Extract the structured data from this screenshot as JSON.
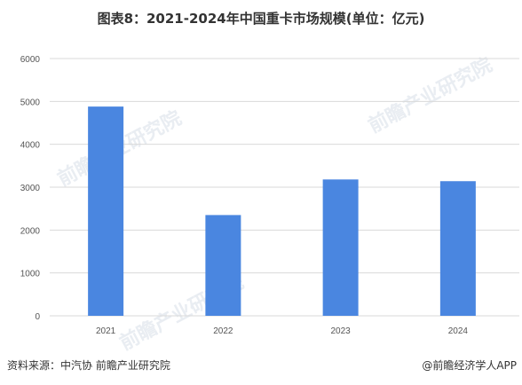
{
  "title": "图表8：2021-2024年中国重卡市场规模(单位：亿元)",
  "source": "资料来源：中汽协 前瞻产业研究院",
  "credit": "@前瞻经济学人APP",
  "watermark": "前瞻产业研究院",
  "colors": {
    "bar": "#4a86e0",
    "grid": "#d9d9d9"
  },
  "chart_data": {
    "type": "bar",
    "categories": [
      "2021",
      "2022",
      "2023",
      "2024"
    ],
    "values": [
      4880,
      2350,
      3180,
      3140
    ],
    "ylim": [
      0,
      6000
    ],
    "yticks": [
      0,
      1000,
      2000,
      3000,
      4000,
      5000,
      6000
    ],
    "grid": true
  }
}
